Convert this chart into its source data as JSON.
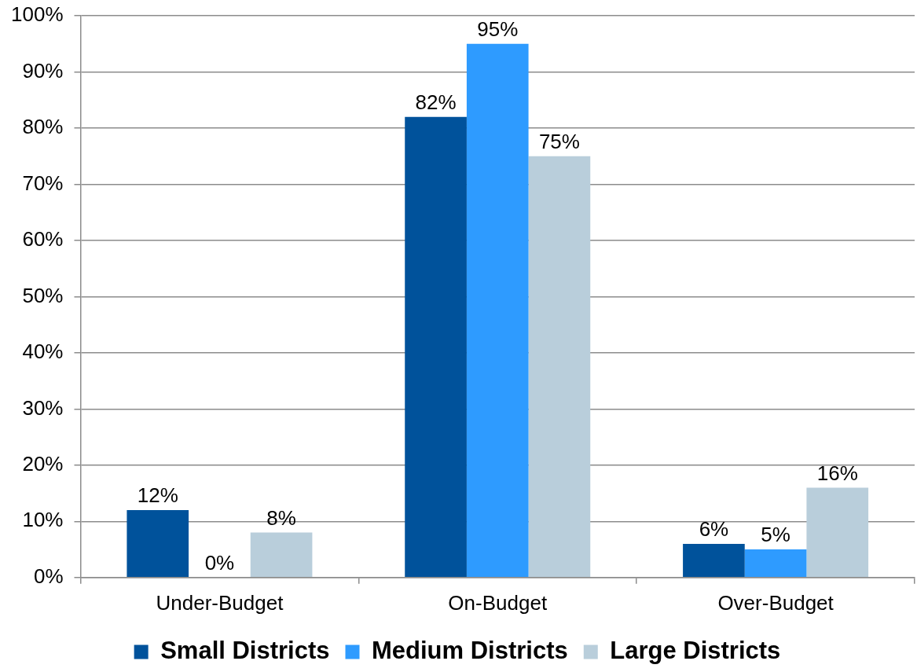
{
  "chart_data": {
    "type": "bar",
    "categories": [
      "Under-Budget",
      "On-Budget",
      "Over-Budget"
    ],
    "series": [
      {
        "name": "Small Districts",
        "color": "#00529b",
        "values": [
          12,
          82,
          6
        ],
        "value_labels": [
          "12%",
          "82%",
          "6%"
        ]
      },
      {
        "name": "Medium Districts",
        "color": "#2e9bff",
        "values": [
          0,
          95,
          5
        ],
        "value_labels": [
          "0%",
          "95%",
          "5%"
        ]
      },
      {
        "name": "Large Districts",
        "color": "#b9cedb",
        "values": [
          8,
          75,
          16
        ],
        "value_labels": [
          "8%",
          "75%",
          "16%"
        ]
      }
    ],
    "ylim": [
      0,
      100
    ],
    "yticks": [
      {
        "value": 0,
        "label": "0%"
      },
      {
        "value": 10,
        "label": "10%"
      },
      {
        "value": 20,
        "label": "20%"
      },
      {
        "value": 30,
        "label": "30%"
      },
      {
        "value": 40,
        "label": "40%"
      },
      {
        "value": 50,
        "label": "50%"
      },
      {
        "value": 60,
        "label": "60%"
      },
      {
        "value": 70,
        "label": "70%"
      },
      {
        "value": 80,
        "label": "80%"
      },
      {
        "value": 90,
        "label": "90%"
      },
      {
        "value": 100,
        "label": "100%"
      }
    ],
    "grid": "y",
    "legend": "bottom"
  }
}
